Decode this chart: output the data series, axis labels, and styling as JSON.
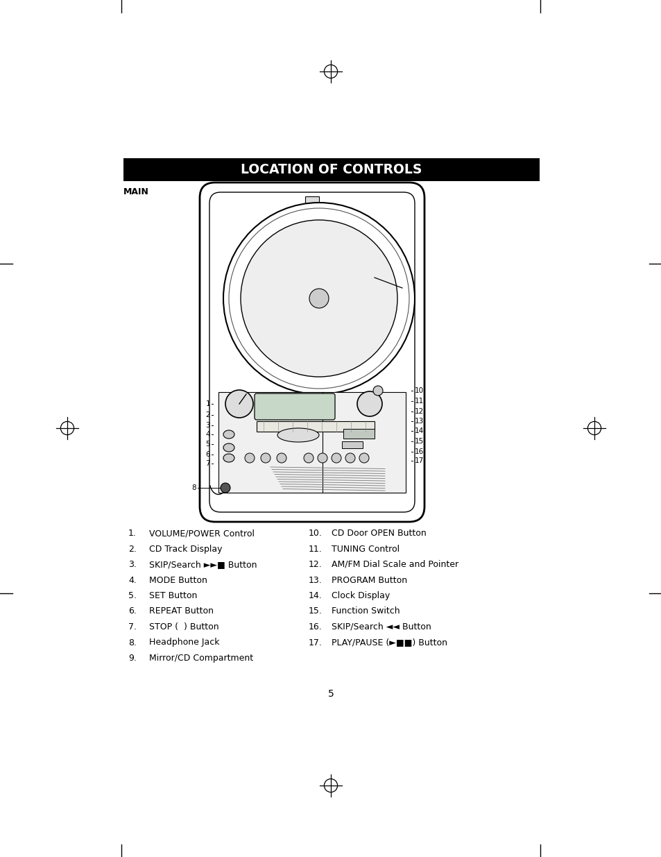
{
  "title": "LOCATION OF CONTROLS",
  "title_bg": "#000000",
  "title_fg": "#ffffff",
  "main_label": "MAIN",
  "left_items_nums": [
    "1.",
    "2.",
    "3.",
    "4.",
    "5.",
    "6.",
    "7.",
    "8.",
    "9."
  ],
  "left_items_text": [
    "VOLUME/POWER Control",
    "CD Track Display",
    "SKIP/Search ►►■ Button",
    "MODE Button",
    "SET Button",
    "REPEAT Button",
    "STOP (  ) Button",
    "Headphone Jack",
    "Mirror/CD Compartment"
  ],
  "right_items_nums": [
    "10.",
    "11.",
    "12.",
    "13.",
    "14.",
    "15.",
    "16.",
    "17."
  ],
  "right_items_text": [
    "CD Door OPEN Button",
    "TUNING Control",
    "AM/FM Dial Scale and Pointer",
    "PROGRAM Button",
    "Clock Display",
    "Function Switch",
    "SKIP/Search ◄◄ Button",
    "PLAY/PAUSE (►■■) Button"
  ],
  "page_number": "5",
  "bg_color": "#ffffff"
}
